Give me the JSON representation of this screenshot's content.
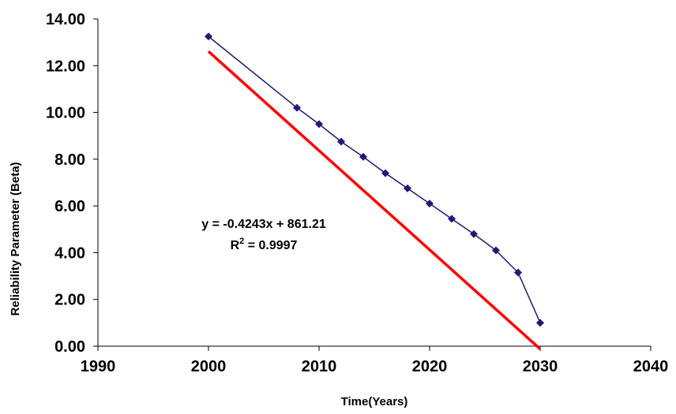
{
  "chart_data": {
    "type": "scatter",
    "title": "",
    "xlabel": "Time(Years)",
    "ylabel": "Reliability Parameter (Beta)",
    "xlim": [
      1990,
      2040
    ],
    "ylim": [
      0,
      14
    ],
    "x_ticks": [
      "1990",
      "2000",
      "2010",
      "2020",
      "2030",
      "2040"
    ],
    "y_ticks": [
      "0.00",
      "2.00",
      "4.00",
      "6.00",
      "8.00",
      "10.00",
      "12.00",
      "14.00"
    ],
    "x_tick_values": [
      1990,
      2000,
      2010,
      2020,
      2030,
      2040
    ],
    "y_tick_values": [
      0,
      2,
      4,
      6,
      8,
      10,
      12,
      14
    ],
    "grid": false,
    "legend": "none",
    "series": [
      {
        "color": "#1F1A7A",
        "marker": "diamond",
        "x": [
          2000,
          2008,
          2010,
          2012,
          2014,
          2016,
          2018,
          2020,
          2022,
          2024,
          2026,
          2028,
          2030
        ],
        "y": [
          13.25,
          10.2,
          9.5,
          8.75,
          8.1,
          7.4,
          6.75,
          6.1,
          5.45,
          4.8,
          4.1,
          3.15,
          1.0
        ]
      }
    ],
    "trendline": {
      "type": "linear",
      "slope": -0.4243,
      "intercept": 861.21,
      "x_range": [
        2000,
        2030
      ],
      "color": "#FF0000"
    },
    "annotations": {
      "equation": "y = -0.4243x + 861.21",
      "r2_label": "R",
      "r2_exponent": "2",
      "r2_value": " = 0.9997"
    },
    "axis_color": "#000000"
  }
}
